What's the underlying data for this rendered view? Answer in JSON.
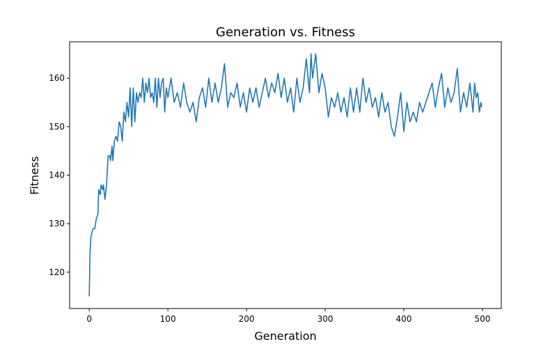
{
  "chart_data": {
    "type": "line",
    "title": "Generation vs. Fitness",
    "x_label": "Generation",
    "y_label": "Fitness",
    "x": [
      0,
      1,
      2,
      3,
      5,
      7,
      9,
      11,
      12,
      14,
      15,
      17,
      18,
      20,
      22,
      24,
      26,
      27,
      29,
      30,
      32,
      34,
      36,
      38,
      40,
      42,
      44,
      46,
      48,
      50,
      52,
      54,
      56,
      58,
      60,
      62,
      64,
      66,
      68,
      70,
      72,
      74,
      76,
      78,
      80,
      82,
      84,
      86,
      88,
      90,
      92,
      94,
      96,
      98,
      100,
      104,
      108,
      112,
      116,
      120,
      124,
      128,
      132,
      136,
      140,
      144,
      148,
      152,
      156,
      160,
      164,
      168,
      172,
      176,
      180,
      184,
      188,
      192,
      196,
      200,
      204,
      208,
      212,
      216,
      220,
      224,
      228,
      232,
      236,
      240,
      244,
      248,
      252,
      256,
      260,
      264,
      268,
      272,
      276,
      280,
      282,
      284,
      288,
      292,
      296,
      300,
      304,
      308,
      312,
      316,
      320,
      324,
      328,
      332,
      336,
      340,
      344,
      348,
      352,
      356,
      360,
      364,
      368,
      372,
      376,
      380,
      384,
      388,
      392,
      396,
      400,
      404,
      408,
      412,
      416,
      420,
      424,
      428,
      432,
      436,
      440,
      444,
      448,
      452,
      456,
      460,
      464,
      468,
      472,
      476,
      480,
      484,
      488,
      490,
      492,
      494,
      496,
      498,
      499
    ],
    "series": [
      {
        "name": "Fitness",
        "color": "#1f77b4",
        "values": [
          115,
          124,
          127,
          128,
          129,
          129,
          131,
          132,
          137,
          136,
          138,
          137,
          138,
          135,
          138,
          144,
          144,
          143,
          146,
          143,
          147,
          148,
          147,
          151,
          150,
          147,
          153,
          151,
          155,
          152,
          158,
          150,
          158,
          151,
          157,
          155,
          157,
          156,
          160,
          155,
          159,
          157,
          160,
          156,
          157,
          155,
          160,
          154,
          160,
          156,
          159,
          160,
          153,
          158,
          156,
          160,
          155,
          157,
          154,
          159,
          155,
          153,
          155,
          151,
          156,
          158,
          154,
          160,
          155,
          159,
          155,
          158,
          163,
          154,
          157,
          156,
          159,
          154,
          157,
          153,
          158,
          155,
          158,
          154,
          157,
          160,
          156,
          159,
          157,
          161,
          156,
          160,
          155,
          158,
          153,
          160,
          155,
          158,
          164,
          157,
          165,
          160,
          165,
          157,
          161,
          158,
          152,
          156,
          154,
          157,
          153,
          156,
          152,
          158,
          153,
          158,
          153,
          160,
          155,
          158,
          154,
          156,
          152,
          157,
          153,
          155,
          150,
          148,
          152,
          157,
          149,
          155,
          151,
          153,
          151,
          155,
          153,
          155,
          157,
          159,
          154,
          158,
          161,
          154,
          158,
          155,
          157,
          162,
          153,
          157,
          154,
          159,
          153,
          159,
          156,
          157,
          153,
          155,
          154
        ]
      }
    ],
    "xlim": [
      -24.95,
      523.95
    ],
    "ylim": [
      112.5,
      167.5
    ],
    "xticks": [
      0,
      100,
      200,
      300,
      400,
      500
    ],
    "yticks": [
      120,
      130,
      140,
      150,
      160
    ]
  }
}
